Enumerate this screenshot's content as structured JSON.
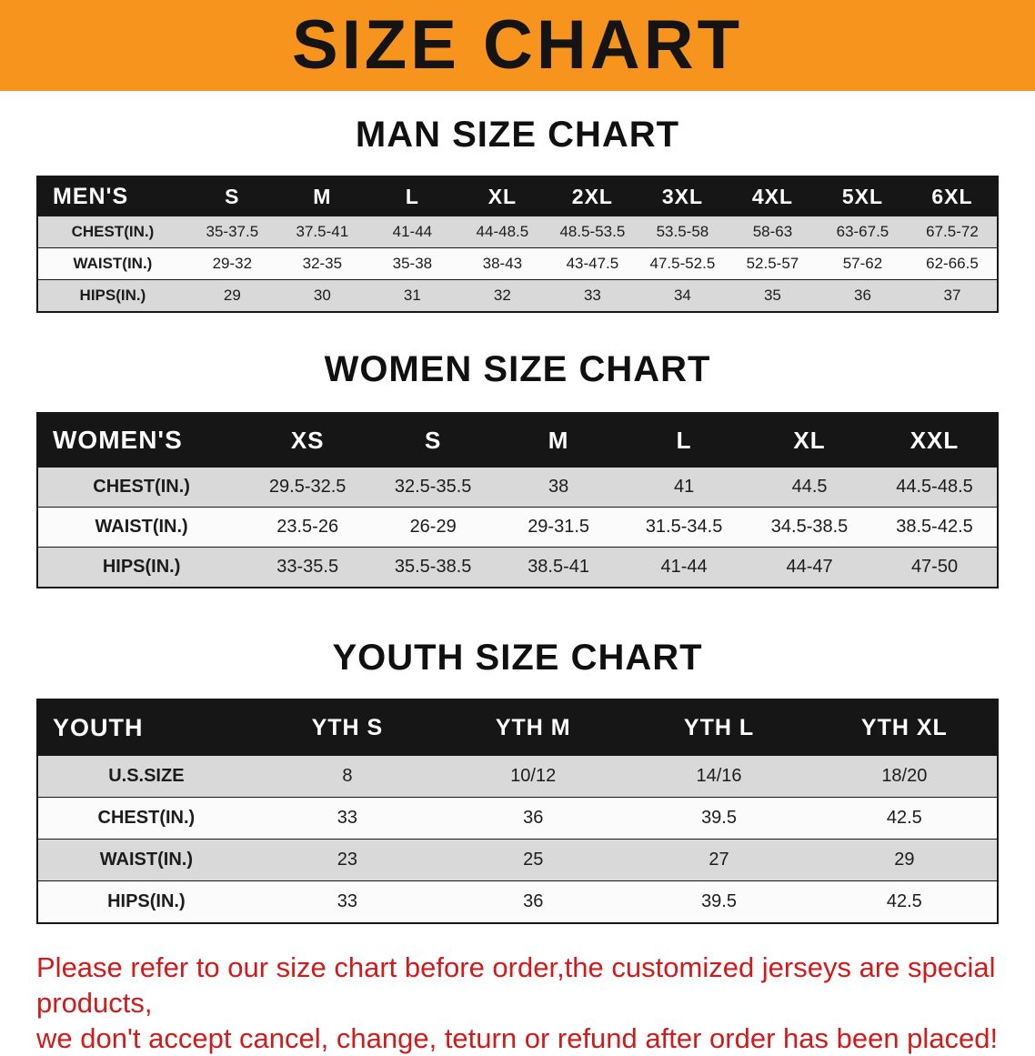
{
  "banner": {
    "title": "SIZE CHART"
  },
  "colors": {
    "banner_bg": "#F7941D",
    "table_header_bg": "#161616",
    "row_stripe": "#d9d9d9",
    "disclaimer_text": "#CF1B1B"
  },
  "sections": [
    {
      "id": "men",
      "title": "MAN SIZE CHART",
      "table": {
        "header": [
          "MEN'S",
          "S",
          "M",
          "L",
          "XL",
          "2XL",
          "3XL",
          "4XL",
          "5XL",
          "6XL"
        ],
        "rows": [
          [
            "CHEST(IN.)",
            "35-37.5",
            "37.5-41",
            "41-44",
            "44-48.5",
            "48.5-53.5",
            "53.5-58",
            "58-63",
            "63-67.5",
            "67.5-72"
          ],
          [
            "WAIST(IN.)",
            "29-32",
            "32-35",
            "35-38",
            "38-43",
            "43-47.5",
            "47.5-52.5",
            "52.5-57",
            "57-62",
            "62-66.5"
          ],
          [
            "HIPS(IN.)",
            "29",
            "30",
            "31",
            "32",
            "33",
            "34",
            "35",
            "36",
            "37"
          ]
        ]
      }
    },
    {
      "id": "women",
      "title": "WOMEN SIZE CHART",
      "table": {
        "header": [
          "WOMEN'S",
          "XS",
          "S",
          "M",
          "L",
          "XL",
          "XXL"
        ],
        "rows": [
          [
            "CHEST(IN.)",
            "29.5-32.5",
            "32.5-35.5",
            "38",
            "41",
            "44.5",
            "44.5-48.5"
          ],
          [
            "WAIST(IN.)",
            "23.5-26",
            "26-29",
            "29-31.5",
            "31.5-34.5",
            "34.5-38.5",
            "38.5-42.5"
          ],
          [
            "HIPS(IN.)",
            "33-35.5",
            "35.5-38.5",
            "38.5-41",
            "41-44",
            "44-47",
            "47-50"
          ]
        ]
      }
    },
    {
      "id": "youth",
      "title": "YOUTH SIZE CHART",
      "table": {
        "header": [
          "YOUTH",
          "YTH S",
          "YTH M",
          "YTH L",
          "YTH XL"
        ],
        "rows": [
          [
            "U.S.SIZE",
            "8",
            "10/12",
            "14/16",
            "18/20"
          ],
          [
            "CHEST(IN.)",
            "33",
            "36",
            "39.5",
            "42.5"
          ],
          [
            "WAIST(IN.)",
            "23",
            "25",
            "27",
            "29"
          ],
          [
            "HIPS(IN.)",
            "33",
            "36",
            "39.5",
            "42.5"
          ]
        ]
      }
    }
  ],
  "disclaimer": {
    "line1": "Please refer to our size chart before order,the customized jerseys are special products,",
    "line2": "we don't accept cancel, change, teturn or refund after order has been placed!"
  }
}
